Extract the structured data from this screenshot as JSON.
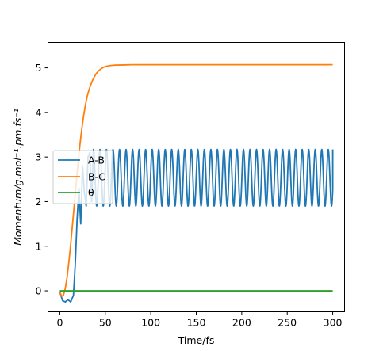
{
  "chart_data": {
    "type": "line",
    "xlabel": "Time/fs",
    "ylabel": "Momentum/g.mol⁻¹.pm.fs⁻¹",
    "xlim": [
      -13,
      313
    ],
    "ylim": [
      -0.47,
      5.57
    ],
    "xticks": [
      "0",
      "50",
      "100",
      "150",
      "200",
      "250",
      "300"
    ],
    "xtick_values": [
      0,
      50,
      100,
      150,
      200,
      250,
      300
    ],
    "yticks": [
      "0",
      "1",
      "2",
      "3",
      "4",
      "5"
    ],
    "ytick_values": [
      0,
      1,
      2,
      3,
      4,
      5
    ],
    "grid": false,
    "legend_position": "center-left",
    "series": [
      {
        "name": "A-B",
        "color": "#1f77b4",
        "x": [
          0,
          3,
          6,
          9,
          12,
          15,
          17,
          19,
          21,
          23,
          25,
          27,
          29,
          31,
          33,
          35,
          37,
          300
        ],
        "values": [
          -0.02,
          -0.22,
          -0.25,
          -0.2,
          -0.25,
          -0.1,
          0.6,
          1.6,
          2.3,
          1.5,
          2.8,
          2.2,
          1.9,
          3.0,
          3.1,
          2.0,
          3.17,
          3.17
        ],
        "oscillation": {
          "from": 37,
          "period": 7.17,
          "min": 1.9,
          "max": 3.17,
          "end": 3.17
        }
      },
      {
        "name": "B-C",
        "color": "#ff7f0e",
        "x": [
          0,
          2,
          4,
          6,
          8,
          10,
          12,
          14,
          16,
          18,
          20,
          22,
          24,
          26,
          28,
          30,
          32,
          34,
          36,
          38,
          40,
          43,
          46,
          50,
          55,
          60,
          70,
          80,
          100,
          150,
          200,
          250,
          300
        ],
        "values": [
          -0.02,
          -0.12,
          -0.1,
          0.05,
          0.3,
          0.65,
          1.05,
          1.5,
          1.95,
          2.4,
          2.85,
          3.25,
          3.6,
          3.9,
          4.15,
          4.35,
          4.5,
          4.62,
          4.72,
          4.8,
          4.87,
          4.94,
          4.99,
          5.03,
          5.05,
          5.06,
          5.065,
          5.07,
          5.07,
          5.07,
          5.07,
          5.07,
          5.07
        ]
      },
      {
        "name": "θ",
        "color": "#2ca02c",
        "x": [
          0,
          300
        ],
        "values": [
          0,
          0
        ]
      }
    ]
  }
}
